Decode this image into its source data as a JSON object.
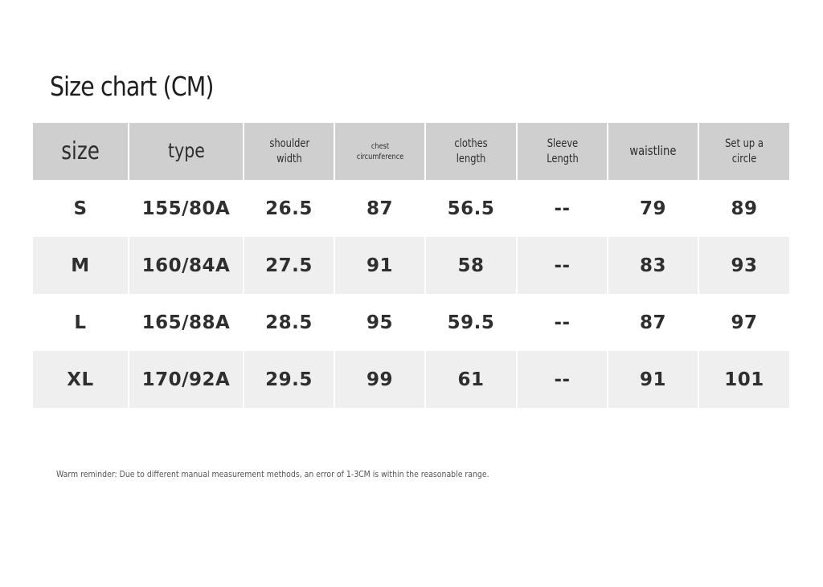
{
  "title": "Size chart (CM)",
  "table": {
    "headers": [
      "size",
      "type",
      "shoulder width",
      "chest circumference",
      "clothes length",
      "Sleeve Length",
      "waistline",
      "Set up a circle"
    ],
    "rows": [
      [
        "S",
        "155/80A",
        "26.5",
        "87",
        "56.5",
        "--",
        "79",
        "89"
      ],
      [
        "M",
        "160/84A",
        "27.5",
        "91",
        "58",
        "--",
        "83",
        "93"
      ],
      [
        "L",
        "165/88A",
        "28.5",
        "95",
        "59.5",
        "--",
        "87",
        "97"
      ],
      [
        "XL",
        "170/92A",
        "29.5",
        "99",
        "61",
        "--",
        "91",
        "101"
      ]
    ]
  },
  "reminder": "Warm reminder: Due to different manual measurement methods, an error of 1-3CM is within the reasonable range."
}
